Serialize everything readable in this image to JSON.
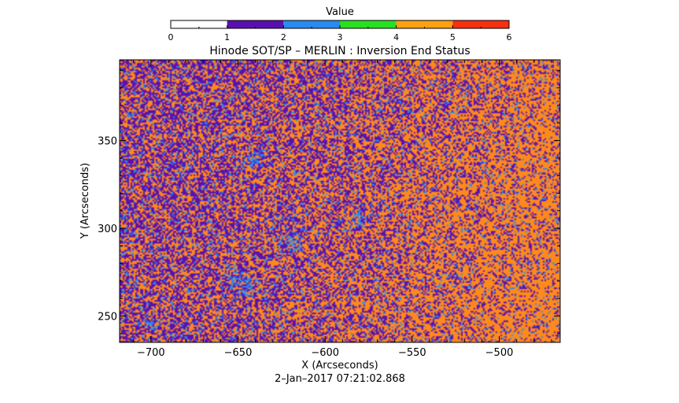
{
  "chart_data": {
    "type": "heatmap",
    "title": "Hinode SOT/SP – MERLIN : Inversion End Status",
    "xlabel": "X (Arcseconds)",
    "ylabel": "Y (Arcseconds)",
    "subtitle": "2–Jan–2017 07:21:02.868",
    "xlim": [
      -718,
      -465
    ],
    "ylim": [
      235,
      396
    ],
    "x_ticks": [
      -700,
      -650,
      -600,
      -550,
      -500
    ],
    "x_tick_labels": [
      "−700",
      "−650",
      "−600",
      "−550",
      "−500"
    ],
    "y_ticks": [
      250,
      300,
      350
    ],
    "y_tick_labels": [
      "250",
      "300",
      "350"
    ],
    "colorbar": {
      "title": "Value",
      "range": [
        0,
        6
      ],
      "ticks": [
        0,
        1,
        2,
        3,
        4,
        5,
        6
      ],
      "tick_labels": [
        "0",
        "1",
        "2",
        "3",
        "4",
        "5",
        "6"
      ],
      "segments": [
        {
          "from": 0,
          "to": 1,
          "color": "#ffffff"
        },
        {
          "from": 1,
          "to": 2,
          "color": "#5a10b0"
        },
        {
          "from": 2,
          "to": 3,
          "color": "#2a8af0"
        },
        {
          "from": 3,
          "to": 4,
          "color": "#28e020"
        },
        {
          "from": 4,
          "to": 5,
          "color": "#ffa010"
        },
        {
          "from": 5,
          "to": 6,
          "color": "#f83010"
        }
      ]
    },
    "values_present": [
      1,
      2,
      4
    ],
    "value_colors": {
      "1": "#5a10b0",
      "2": "#2a8af0",
      "4": "#ff8a1c"
    }
  }
}
